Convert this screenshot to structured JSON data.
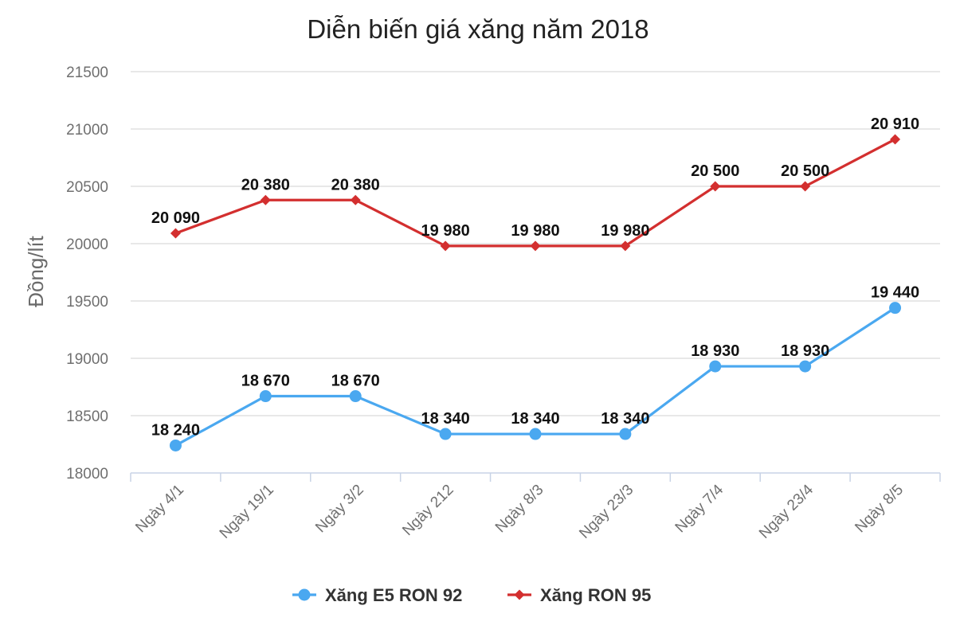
{
  "chart_data": {
    "type": "line",
    "title": "Diễn biến giá xăng năm 2018",
    "xlabel": "",
    "ylabel": "Đồng/lít",
    "categories": [
      "Ngày 4/1",
      "Ngày 19/1",
      "Ngày 3/2",
      "Ngày 212",
      "Ngày 8/3",
      "Ngày 23/3",
      "Ngày 7/4",
      "Ngày 23/4",
      "Ngày 8/5"
    ],
    "ylim": [
      18000,
      21500
    ],
    "yticks": [
      "18000",
      "18500",
      "19000",
      "19500",
      "20000",
      "20500",
      "21000",
      "21500"
    ],
    "grid": true,
    "legend_position": "bottom",
    "series": [
      {
        "name": "Xăng E5 RON 92",
        "color": "#4aa8f0",
        "marker": "circle",
        "values": [
          18240,
          18670,
          18670,
          18340,
          18340,
          18340,
          18930,
          18930,
          19440
        ],
        "labels": [
          "18 240",
          "18 670",
          "18 670",
          "18 340",
          "18 340",
          "18 340",
          "18 930",
          "18 930",
          "19 440"
        ]
      },
      {
        "name": "Xăng RON 95",
        "color": "#d32f2f",
        "marker": "diamond",
        "values": [
          20090,
          20380,
          20380,
          19980,
          19980,
          19980,
          20500,
          20500,
          20910
        ],
        "labels": [
          "20 090",
          "20 380",
          "20 380",
          "19 980",
          "19 980",
          "19 980",
          "20 500",
          "20 500",
          "20 910"
        ]
      }
    ]
  }
}
